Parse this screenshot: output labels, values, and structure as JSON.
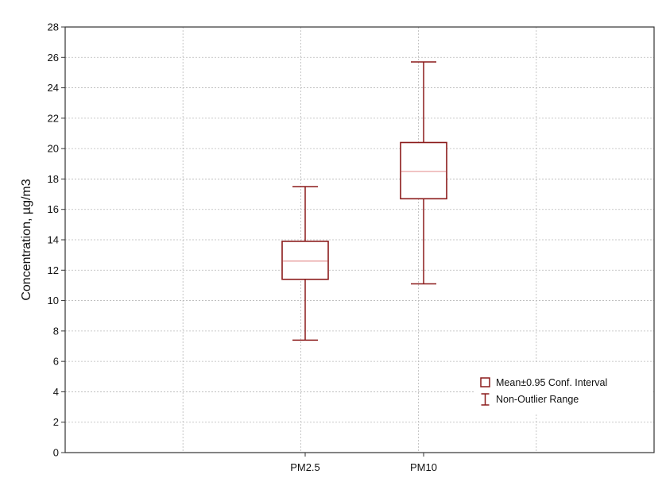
{
  "chart_data": {
    "type": "box",
    "title": "",
    "xlabel": "",
    "ylabel": "Concentration, µg/m3",
    "ylim": [
      0,
      28
    ],
    "yticks": [
      0,
      2,
      4,
      6,
      8,
      10,
      12,
      14,
      16,
      18,
      20,
      22,
      24,
      26,
      28
    ],
    "grid": true,
    "categories": [
      "PM2.5",
      "PM10"
    ],
    "boxes": [
      {
        "category": "PM2.5",
        "mean": 12.6,
        "ci_low": 11.4,
        "ci_high": 13.9,
        "whisker_low": 7.4,
        "whisker_high": 17.5
      },
      {
        "category": "PM10",
        "mean": 18.5,
        "ci_low": 16.7,
        "ci_high": 20.4,
        "whisker_low": 11.1,
        "whisker_high": 25.7
      }
    ],
    "legend": {
      "position": "bottom-right",
      "entries": [
        "Mean±0.95 Conf. Interval",
        "Non-Outlier Range"
      ]
    },
    "colors": {
      "box_stroke": "#8b1a1a",
      "mean_line": "#e8a0a0",
      "grid": "#b8b8b8",
      "frame": "#333333"
    }
  }
}
